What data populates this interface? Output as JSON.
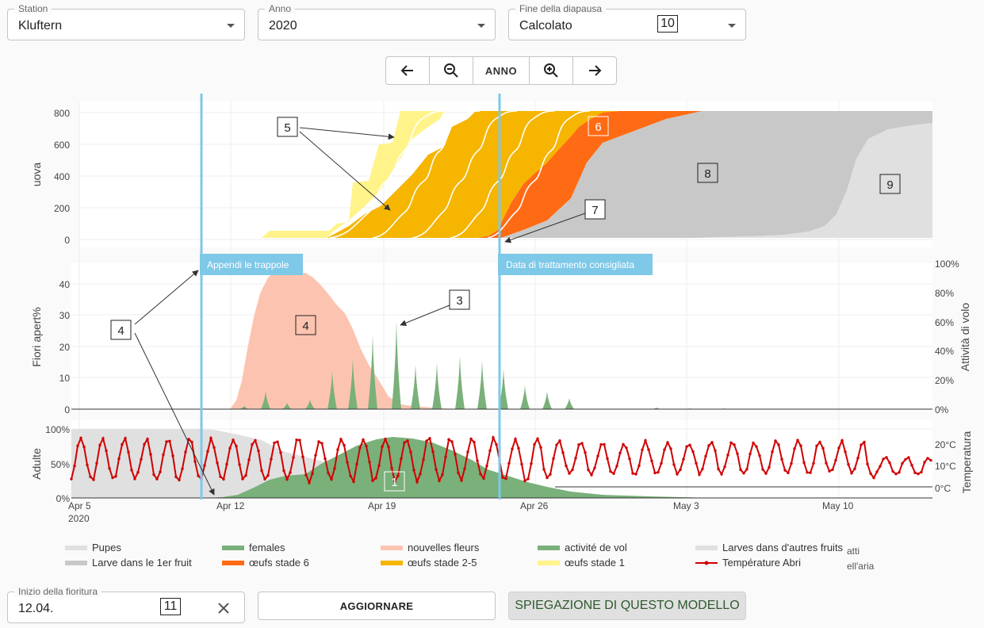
{
  "filters": {
    "station": {
      "label": "Station",
      "value": "Kluftern"
    },
    "year": {
      "label": "Anno",
      "value": "2020"
    },
    "diapause": {
      "label": "Fine della diapausa",
      "value": "Calcolato",
      "marker": "10"
    }
  },
  "nav": {
    "year_label": "ANNO"
  },
  "chart_data": [
    {
      "type": "area",
      "panel": "eggs",
      "ylabel": "uova",
      "ylim": [
        0,
        800
      ],
      "yticks": [
        "800",
        "600",
        "400",
        "200",
        "0"
      ],
      "series": [
        {
          "name": "œufs stade 1",
          "color": "#fff38a"
        },
        {
          "name": "œufs stade 2-5",
          "color": "#f5b500"
        },
        {
          "name": "œufs stade 6",
          "color": "#ff6b14"
        },
        {
          "name": "Larve dans le 1er fruit",
          "color": "#c8c8c8"
        },
        {
          "name": "Larves dans d'autres fruits",
          "color": "#e0e0e0"
        }
      ],
      "markers": [
        "5",
        "6",
        "7",
        "8",
        "9"
      ]
    },
    {
      "type": "area",
      "panel": "flowers-flight",
      "ylabel": "Fiori apert%",
      "y2label": "Attività di volo",
      "yticks": [
        "40",
        "30",
        "20",
        "10",
        "0"
      ],
      "y2ticks": [
        "100%",
        "80%",
        "60%",
        "40%",
        "20%",
        "0%"
      ],
      "series": [
        {
          "name": "nouvelles fleurs",
          "color": "#fcc4b0"
        },
        {
          "name": "activité de vol",
          "color": "#7ab07a"
        }
      ],
      "markers": [
        "3",
        "4",
        "4"
      ]
    },
    {
      "type": "line",
      "panel": "adults-temperature",
      "ylabel": "Adulte",
      "y2label": "Temperatura",
      "yticks": [
        "100%",
        "50%",
        "0%"
      ],
      "y2ticks": [
        "20°C",
        "10°C",
        "0°C"
      ],
      "x_ticks": [
        "Apr 5",
        "Apr 12",
        "Apr 19",
        "Apr 26",
        "May 3",
        "May 10"
      ],
      "x_year": "2020",
      "series": [
        {
          "name": "Pupes",
          "color": "#e0e0e0"
        },
        {
          "name": "females",
          "color": "#7ab07a"
        },
        {
          "name": "Température Abri",
          "color": "#d00000"
        }
      ],
      "markers": [
        "1"
      ]
    }
  ],
  "annotations": {
    "trap_line": "Appendi le trappole",
    "treatment_line": "Data di trattamento consigliata"
  },
  "legend": [
    {
      "label": "Pupes",
      "color": "#e0e0e0"
    },
    {
      "label": "females",
      "color": "#7ab07a"
    },
    {
      "label": "nouvelles fleurs",
      "color": "#fcc4b0"
    },
    {
      "label": "activité de vol",
      "color": "#7ab07a"
    },
    {
      "label": "Larves dans d'autres fruits",
      "color": "#e0e0e0"
    },
    {
      "label": "Larve dans le 1er fruit",
      "color": "#c8c8c8"
    },
    {
      "label": "œufs stade 6",
      "color": "#ff6b14"
    },
    {
      "label": "œufs stade 2-5",
      "color": "#f5b500"
    },
    {
      "label": "œufs stade 1",
      "color": "#fff38a"
    },
    {
      "label": "Température Abri",
      "color": "#d00000"
    }
  ],
  "legend_overflow": [
    "atti",
    "ell'aria"
  ],
  "bottom": {
    "bloom_label": "Inizio della fioritura",
    "bloom_value": "12.04.",
    "bloom_marker": "11",
    "update_button": "AGGIORNARE",
    "explain_button": "SPIEGAZIONE DI QUESTO MODELLO"
  }
}
